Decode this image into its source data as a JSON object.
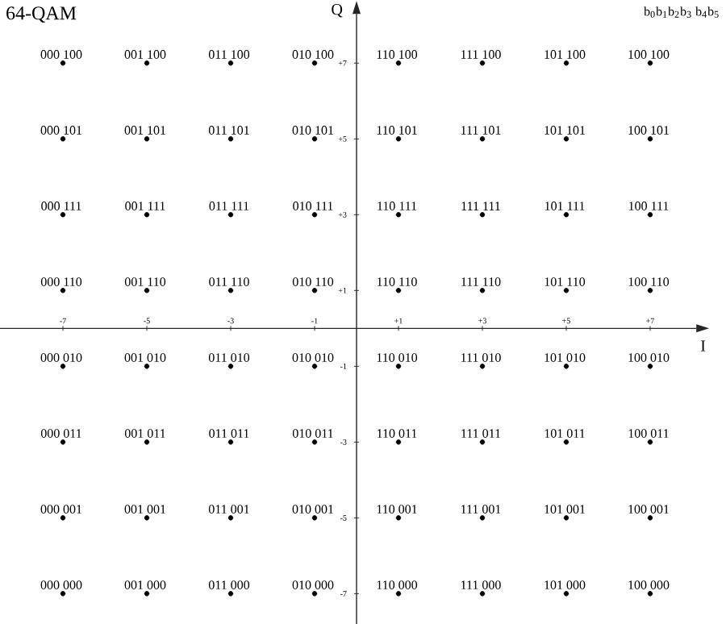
{
  "chart_data": {
    "type": "scatter",
    "title": "64-QAM",
    "xlabel": "I",
    "ylabel": "Q",
    "xlim": [
      -8.5,
      8.1
    ],
    "ylim": [
      -7.8,
      8.3
    ],
    "xticks": [
      {
        "value": -7,
        "label": "-7"
      },
      {
        "value": -5,
        "label": "-5"
      },
      {
        "value": -3,
        "label": "-3"
      },
      {
        "value": -1,
        "label": "-1"
      },
      {
        "value": 1,
        "label": "+1"
      },
      {
        "value": 3,
        "label": "+3"
      },
      {
        "value": 5,
        "label": "+5"
      },
      {
        "value": 7,
        "label": "+7"
      }
    ],
    "yticks": [
      {
        "value": -7,
        "label": "-7"
      },
      {
        "value": -5,
        "label": "-5"
      },
      {
        "value": -3,
        "label": "-3"
      },
      {
        "value": -1,
        "label": "-1"
      },
      {
        "value": 1,
        "label": "+1"
      },
      {
        "value": 3,
        "label": "+3"
      },
      {
        "value": 5,
        "label": "+5"
      },
      {
        "value": 7,
        "label": "+7"
      }
    ],
    "marker": "circle",
    "color": "#000000",
    "x": [
      -7,
      -5,
      -3,
      -1,
      1,
      3,
      5,
      7,
      -7,
      -5,
      -3,
      -1,
      1,
      3,
      5,
      7,
      -7,
      -5,
      -3,
      -1,
      1,
      3,
      5,
      7,
      -7,
      -5,
      -3,
      -1,
      1,
      3,
      5,
      7,
      -7,
      -5,
      -3,
      -1,
      1,
      3,
      5,
      7,
      -7,
      -5,
      -3,
      -1,
      1,
      3,
      5,
      7,
      -7,
      -5,
      -3,
      -1,
      1,
      3,
      5,
      7,
      -7,
      -5,
      -3,
      -1,
      1,
      3,
      5,
      7
    ],
    "values": [
      7,
      7,
      7,
      7,
      7,
      7,
      7,
      7,
      5,
      5,
      5,
      5,
      5,
      5,
      5,
      5,
      3,
      3,
      3,
      3,
      3,
      3,
      3,
      3,
      1,
      1,
      1,
      1,
      1,
      1,
      1,
      1,
      -1,
      -1,
      -1,
      -1,
      -1,
      -1,
      -1,
      -1,
      -3,
      -3,
      -3,
      -3,
      -3,
      -3,
      -3,
      -3,
      -5,
      -5,
      -5,
      -5,
      -5,
      -5,
      -5,
      -5,
      -7,
      -7,
      -7,
      -7,
      -7,
      -7,
      -7,
      -7
    ],
    "annotations": [
      "b$_{0}$b$_{1}$b$_{2}$b$_{3}$ b$_{4}$b$_{5}$",
      {
        "text": "000 100",
        "x": -7,
        "y": 7
      },
      {
        "text": "001 100",
        "x": -5,
        "y": 7
      },
      {
        "text": "011 100",
        "x": -3,
        "y": 7
      },
      {
        "text": "010 100",
        "x": -1,
        "y": 7
      },
      {
        "text": "110 100",
        "x": 1,
        "y": 7
      },
      {
        "text": "111 100",
        "x": 3,
        "y": 7
      },
      {
        "text": "101 100",
        "x": 5,
        "y": 7
      },
      {
        "text": "100 100",
        "x": 7,
        "y": 7
      },
      {
        "text": "000 101",
        "x": -7,
        "y": 5
      },
      {
        "text": "001 101",
        "x": -5,
        "y": 5
      },
      {
        "text": "011 101",
        "x": -3,
        "y": 5
      },
      {
        "text": "010 101",
        "x": -1,
        "y": 5
      },
      {
        "text": "110 101",
        "x": 1,
        "y": 5
      },
      {
        "text": "111 101",
        "x": 3,
        "y": 5
      },
      {
        "text": "101 101",
        "x": 5,
        "y": 5
      },
      {
        "text": "100 101",
        "x": 7,
        "y": 5
      },
      {
        "text": "000 111",
        "x": -7,
        "y": 3
      },
      {
        "text": "001 111",
        "x": -5,
        "y": 3
      },
      {
        "text": "011 111",
        "x": -3,
        "y": 3
      },
      {
        "text": "010 111",
        "x": -1,
        "y": 3
      },
      {
        "text": "110 111",
        "x": 1,
        "y": 3
      },
      {
        "text": "111 111",
        "x": 3,
        "y": 3
      },
      {
        "text": "101 111",
        "x": 5,
        "y": 3
      },
      {
        "text": "100 111",
        "x": 7,
        "y": 3
      },
      {
        "text": "000 110",
        "x": -7,
        "y": 1
      },
      {
        "text": "001 110",
        "x": -5,
        "y": 1
      },
      {
        "text": "011 110",
        "x": -3,
        "y": 1
      },
      {
        "text": "010 110",
        "x": -1,
        "y": 1
      },
      {
        "text": "110 110",
        "x": 1,
        "y": 1
      },
      {
        "text": "111 110",
        "x": 3,
        "y": 1
      },
      {
        "text": "101 110",
        "x": 5,
        "y": 1
      },
      {
        "text": "100 110",
        "x": 7,
        "y": 1
      },
      {
        "text": "000 010",
        "x": -7,
        "y": -1
      },
      {
        "text": "001 010",
        "x": -5,
        "y": -1
      },
      {
        "text": "011 010",
        "x": -3,
        "y": -1
      },
      {
        "text": "010 010",
        "x": -1,
        "y": -1
      },
      {
        "text": "110 010",
        "x": 1,
        "y": -1
      },
      {
        "text": "111 010",
        "x": 3,
        "y": -1
      },
      {
        "text": "101 010",
        "x": 5,
        "y": -1
      },
      {
        "text": "100 010",
        "x": 7,
        "y": -1
      },
      {
        "text": "000 011",
        "x": -7,
        "y": -3
      },
      {
        "text": "001 011",
        "x": -5,
        "y": -3
      },
      {
        "text": "011 011",
        "x": -3,
        "y": -3
      },
      {
        "text": "010 011",
        "x": -1,
        "y": -3
      },
      {
        "text": "110 011",
        "x": 1,
        "y": -3
      },
      {
        "text": "111 011",
        "x": 3,
        "y": -3
      },
      {
        "text": "101 011",
        "x": 5,
        "y": -3
      },
      {
        "text": "100 011",
        "x": 7,
        "y": -3
      },
      {
        "text": "000 001",
        "x": -7,
        "y": -5
      },
      {
        "text": "001 001",
        "x": -5,
        "y": -5
      },
      {
        "text": "011 001",
        "x": -3,
        "y": -5
      },
      {
        "text": "010 001",
        "x": -1,
        "y": -5
      },
      {
        "text": "110 001",
        "x": 1,
        "y": -5
      },
      {
        "text": "111 001",
        "x": 3,
        "y": -5
      },
      {
        "text": "101 001",
        "x": 5,
        "y": -5
      },
      {
        "text": "100 001",
        "x": 7,
        "y": -5
      },
      {
        "text": "000 000",
        "x": -7,
        "y": -7
      },
      {
        "text": "001 000",
        "x": -5,
        "y": -7
      },
      {
        "text": "011 000",
        "x": -3,
        "y": -7
      },
      {
        "text": "010 000",
        "x": -1,
        "y": -7
      },
      {
        "text": "110 000",
        "x": 1,
        "y": -7
      },
      {
        "text": "111 000",
        "x": 3,
        "y": -7
      },
      {
        "text": "101 000",
        "x": 5,
        "y": -7
      },
      {
        "text": "100 000",
        "x": 7,
        "y": -7
      }
    ]
  }
}
